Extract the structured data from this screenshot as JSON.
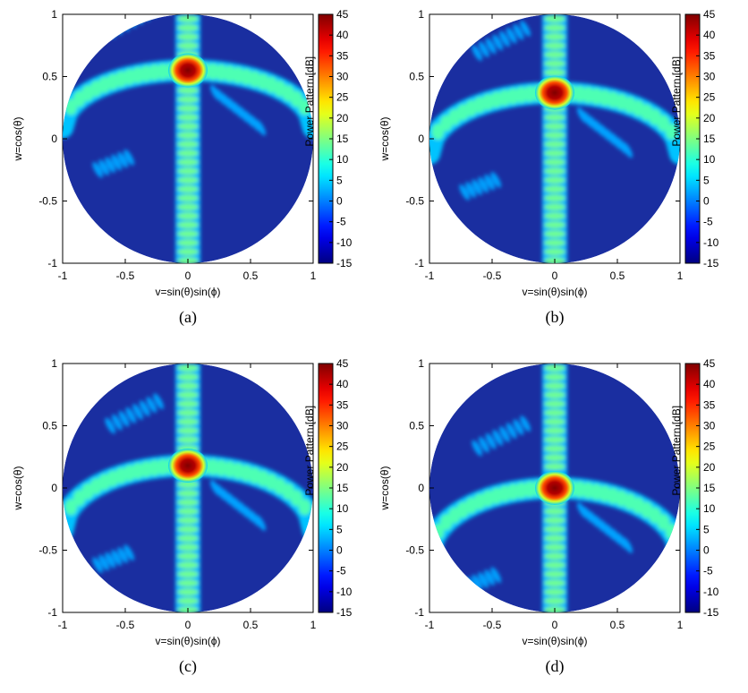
{
  "chart_data": [
    {
      "type": "heatmap",
      "panel_label": "(a)",
      "xlabel": "v=sin(θ)sin(ϕ)",
      "ylabel": "w=cos(θ)",
      "xlim": [
        -1,
        1
      ],
      "ylim": [
        -1,
        1
      ],
      "x_ticks": [
        "-1",
        "-0.5",
        "0",
        "0.5",
        "1"
      ],
      "y_ticks": [
        "-1",
        "-0.5",
        "0",
        "0.5",
        "1"
      ],
      "colorbar_label": "Power Pattern [dB]",
      "colorbar_range": [
        -15,
        45
      ],
      "colorbar_ticks": [
        "-15",
        "-10",
        "-5",
        "0",
        "5",
        "10",
        "15",
        "20",
        "25",
        "30",
        "35",
        "40",
        "45"
      ],
      "main_beam": {
        "v": 0.0,
        "w": 0.55,
        "peak_db": 45
      }
    },
    {
      "type": "heatmap",
      "panel_label": "(b)",
      "xlabel": "v=sin(θ)sin(ϕ)",
      "ylabel": "w=cos(θ)",
      "xlim": [
        -1,
        1
      ],
      "ylim": [
        -1,
        1
      ],
      "x_ticks": [
        "-1",
        "-0.5",
        "0",
        "0.5",
        "1"
      ],
      "y_ticks": [
        "-1",
        "-0.5",
        "0",
        "0.5",
        "1"
      ],
      "colorbar_label": "Power Pattern [dB]",
      "colorbar_range": [
        -15,
        45
      ],
      "colorbar_ticks": [
        "-15",
        "-10",
        "-5",
        "0",
        "5",
        "10",
        "15",
        "20",
        "25",
        "30",
        "35",
        "40",
        "45"
      ],
      "main_beam": {
        "v": 0.0,
        "w": 0.37,
        "peak_db": 45
      }
    },
    {
      "type": "heatmap",
      "panel_label": "(c)",
      "xlabel": "v=sin(θ)sin(ϕ)",
      "ylabel": "w=cos(θ)",
      "xlim": [
        -1,
        1
      ],
      "ylim": [
        -1,
        1
      ],
      "x_ticks": [
        "-1",
        "-0.5",
        "0",
        "0.5",
        "1"
      ],
      "y_ticks": [
        "-1",
        "-0.5",
        "0",
        "0.5",
        "1"
      ],
      "colorbar_label": "Power Pattern [dB]",
      "colorbar_range": [
        -15,
        45
      ],
      "colorbar_ticks": [
        "-15",
        "-10",
        "-5",
        "0",
        "5",
        "10",
        "15",
        "20",
        "25",
        "30",
        "35",
        "40",
        "45"
      ],
      "main_beam": {
        "v": 0.0,
        "w": 0.18,
        "peak_db": 45
      }
    },
    {
      "type": "heatmap",
      "panel_label": "(d)",
      "xlabel": "v=sin(θ)sin(ϕ)",
      "ylabel": "w=cos(θ)",
      "xlim": [
        -1,
        1
      ],
      "ylim": [
        -1,
        1
      ],
      "x_ticks": [
        "-1",
        "-0.5",
        "0",
        "0.5",
        "1"
      ],
      "y_ticks": [
        "-1",
        "-0.5",
        "0",
        "0.5",
        "1"
      ],
      "colorbar_label": "Power Pattern [dB]",
      "colorbar_range": [
        -15,
        45
      ],
      "colorbar_ticks": [
        "-15",
        "-10",
        "-5",
        "0",
        "5",
        "10",
        "15",
        "20",
        "25",
        "30",
        "35",
        "40",
        "45"
      ],
      "main_beam": {
        "v": 0.0,
        "w": 0.0,
        "peak_db": 45
      }
    }
  ],
  "colors": {
    "background_level": "#1a2ea0",
    "colormap": [
      "#0f0f8f",
      "#1e3cff",
      "#00a0ff",
      "#00e5e5",
      "#30e080",
      "#aaf020",
      "#ffee00",
      "#ff9900",
      "#ff2200",
      "#b40000"
    ]
  }
}
